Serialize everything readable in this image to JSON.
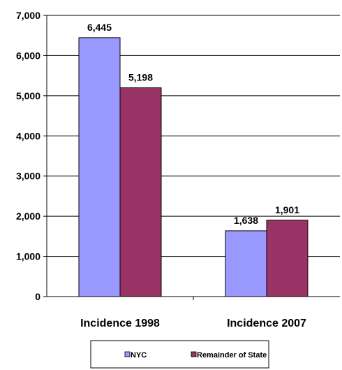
{
  "chart_data": {
    "type": "bar",
    "categories": [
      "Incidence 1998",
      "Incidence 2007"
    ],
    "series": [
      {
        "name": "NYC",
        "values": [
          6445,
          1638
        ],
        "color": "#9999ff",
        "labels": [
          "6,445",
          "1,638"
        ]
      },
      {
        "name": "Remainder of State",
        "values": [
          5198,
          1901
        ],
        "color": "#993366",
        "labels": [
          "5,198",
          "1,901"
        ]
      }
    ],
    "title": "",
    "xlabel": "",
    "ylabel": "",
    "ylim": [
      0,
      7000
    ],
    "yticks": [
      0,
      1000,
      2000,
      3000,
      4000,
      5000,
      6000,
      7000
    ],
    "ytick_labels": [
      "0",
      "1,000",
      "2,000",
      "3,000",
      "4,000",
      "5,000",
      "6,000",
      "7,000"
    ],
    "grid": true,
    "legend_position": "bottom"
  }
}
